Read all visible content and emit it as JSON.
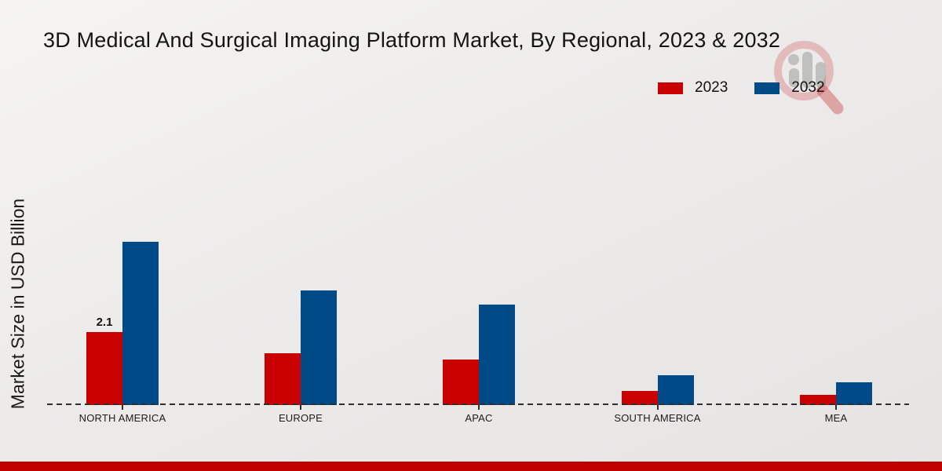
{
  "title": "3D Medical And Surgical Imaging Platform Market, By Regional, 2023 & 2032",
  "ylabel": "Market Size in USD Billion",
  "colors": {
    "series_2023": "#c80000",
    "series_2032": "#004a87",
    "footer_bar": "#c10000",
    "baseline": "#2e2e2e",
    "text": "#141414"
  },
  "watermark": {
    "name": "magnifier-analytics-logo-watermark"
  },
  "chart_data": {
    "type": "bar",
    "title": "3D Medical And Surgical Imaging Platform Market, By Regional, 2023 & 2032",
    "categories": [
      "NORTH AMERICA",
      "EUROPE",
      "APAC",
      "SOUTH AMERICA",
      "MEA"
    ],
    "series": [
      {
        "name": "2023",
        "color": "#c80000",
        "values": [
          2.1,
          1.5,
          1.3,
          0.4,
          0.3
        ],
        "data_labels": [
          "2.1",
          "",
          "",
          "",
          ""
        ]
      },
      {
        "name": "2032",
        "color": "#004a87",
        "values": [
          4.7,
          3.3,
          2.9,
          0.85,
          0.65
        ],
        "data_labels": [
          "",
          "",
          "",
          "",
          ""
        ]
      }
    ],
    "xlabel": "",
    "ylabel": "Market Size in USD Billion",
    "ylim": [
      0,
      5
    ],
    "grid": false,
    "y_ticks_visible": false,
    "legend_position": "top-right",
    "baseline_style": "dashed",
    "annotation_note": "only North America 2023 bar carries a printed value label"
  }
}
